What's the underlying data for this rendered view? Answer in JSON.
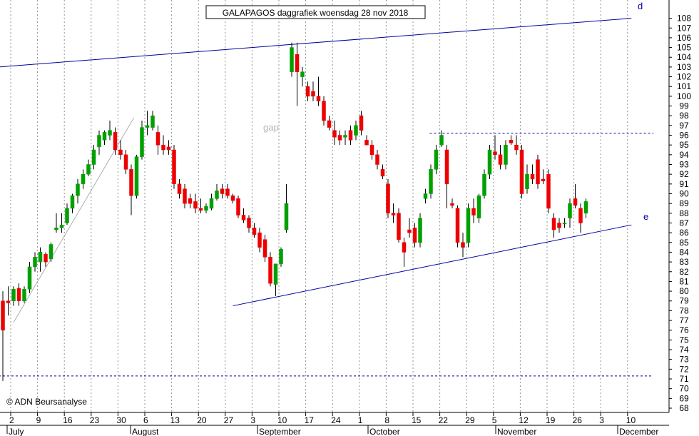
{
  "chart_data": {
    "type": "candlestick",
    "title": "GALAPAGOS daggrafiek woensdag 28 nov 2018",
    "copyright": "© ADN Beursanalyse",
    "annotations": {
      "gap": "gap",
      "d": "d",
      "e": "e"
    },
    "ylim": [
      68,
      108
    ],
    "yticks": [
      68,
      69,
      70,
      71,
      72,
      73,
      74,
      75,
      76,
      77,
      78,
      79,
      80,
      81,
      82,
      83,
      84,
      85,
      86,
      87,
      88,
      89,
      90,
      91,
      92,
      93,
      94,
      95,
      96,
      97,
      98,
      99,
      100,
      101,
      102,
      103,
      104,
      105,
      106,
      107,
      108
    ],
    "x_day_ticks": [
      "2",
      "9",
      "16",
      "23",
      "30",
      "6",
      "13",
      "20",
      "27",
      "3",
      "10",
      "17",
      "24",
      "1",
      "8",
      "15",
      "22",
      "29",
      "5",
      "12",
      "19",
      "26",
      "3",
      "10"
    ],
    "months": [
      "July",
      "August",
      "September",
      "October",
      "November",
      "December"
    ],
    "grid": true,
    "colors": {
      "up": "#00a000",
      "down": "#ee0000",
      "trendline": "#0000a0",
      "grid": "#909090"
    },
    "candles": [
      {
        "o": 79.0,
        "h": 80.0,
        "l": 70.8,
        "c": 76.0
      },
      {
        "o": 79.0,
        "h": 80.5,
        "l": 77.5,
        "c": 78.8
      },
      {
        "o": 79.0,
        "h": 80.5,
        "l": 78.5,
        "c": 80.2
      },
      {
        "o": 80.3,
        "h": 80.8,
        "l": 78.5,
        "c": 79.0
      },
      {
        "o": 79.0,
        "h": 80.5,
        "l": 78.8,
        "c": 80.2
      },
      {
        "o": 80.2,
        "h": 83.0,
        "l": 79.8,
        "c": 82.5
      },
      {
        "o": 82.5,
        "h": 84.0,
        "l": 82.0,
        "c": 83.5
      },
      {
        "o": 83.0,
        "h": 84.5,
        "l": 82.0,
        "c": 84.0
      },
      {
        "o": 83.8,
        "h": 84.0,
        "l": 82.5,
        "c": 83.0
      },
      {
        "o": 83.3,
        "h": 85.0,
        "l": 83.0,
        "c": 84.8
      },
      {
        "o": 86.3,
        "h": 88.0,
        "l": 86.0,
        "c": 86.5
      },
      {
        "o": 86.5,
        "h": 88.0,
        "l": 86.0,
        "c": 86.8
      },
      {
        "o": 87.0,
        "h": 89.0,
        "l": 86.8,
        "c": 88.5
      },
      {
        "o": 88.5,
        "h": 90.0,
        "l": 88.0,
        "c": 89.8
      },
      {
        "o": 89.8,
        "h": 91.5,
        "l": 89.0,
        "c": 91.0
      },
      {
        "o": 91.0,
        "h": 92.5,
        "l": 90.5,
        "c": 92.0
      },
      {
        "o": 92.0,
        "h": 93.5,
        "l": 91.8,
        "c": 93.0
      },
      {
        "o": 93.0,
        "h": 95.0,
        "l": 92.5,
        "c": 94.5
      },
      {
        "o": 94.8,
        "h": 96.5,
        "l": 94.0,
        "c": 96.0
      },
      {
        "o": 95.5,
        "h": 96.5,
        "l": 95.0,
        "c": 96.3
      },
      {
        "o": 96.0,
        "h": 97.5,
        "l": 95.5,
        "c": 96.5
      },
      {
        "o": 96.3,
        "h": 96.8,
        "l": 94.0,
        "c": 94.5
      },
      {
        "o": 94.5,
        "h": 95.5,
        "l": 93.5,
        "c": 94.0
      },
      {
        "o": 94.0,
        "h": 94.5,
        "l": 92.0,
        "c": 92.5
      },
      {
        "o": 92.5,
        "h": 93.0,
        "l": 87.8,
        "c": 89.8
      },
      {
        "o": 89.8,
        "h": 94.0,
        "l": 89.5,
        "c": 93.8
      },
      {
        "o": 93.8,
        "h": 97.5,
        "l": 93.5,
        "c": 96.8
      },
      {
        "o": 96.8,
        "h": 98.5,
        "l": 96.0,
        "c": 97.0
      },
      {
        "o": 96.8,
        "h": 98.5,
        "l": 96.5,
        "c": 98.0
      },
      {
        "o": 96.3,
        "h": 97.0,
        "l": 94.0,
        "c": 95.0
      },
      {
        "o": 95.0,
        "h": 96.0,
        "l": 94.0,
        "c": 94.5
      },
      {
        "o": 94.8,
        "h": 95.5,
        "l": 94.0,
        "c": 94.5
      },
      {
        "o": 94.5,
        "h": 95.0,
        "l": 90.5,
        "c": 91.0
      },
      {
        "o": 91.0,
        "h": 91.5,
        "l": 89.5,
        "c": 90.0
      },
      {
        "o": 90.5,
        "h": 91.0,
        "l": 88.5,
        "c": 89.0
      },
      {
        "o": 89.5,
        "h": 90.0,
        "l": 88.5,
        "c": 89.0
      },
      {
        "o": 89.2,
        "h": 90.0,
        "l": 88.0,
        "c": 88.5
      },
      {
        "o": 88.5,
        "h": 89.5,
        "l": 88.0,
        "c": 88.3
      },
      {
        "o": 88.3,
        "h": 89.0,
        "l": 88.0,
        "c": 88.7
      },
      {
        "o": 88.5,
        "h": 90.0,
        "l": 88.3,
        "c": 89.5
      },
      {
        "o": 89.5,
        "h": 91.0,
        "l": 89.3,
        "c": 90.3
      },
      {
        "o": 90.5,
        "h": 91.0,
        "l": 89.5,
        "c": 90.0
      },
      {
        "o": 90.5,
        "h": 91.0,
        "l": 89.5,
        "c": 89.8
      },
      {
        "o": 89.8,
        "h": 90.0,
        "l": 89.0,
        "c": 89.3
      },
      {
        "o": 89.5,
        "h": 89.8,
        "l": 87.5,
        "c": 87.8
      },
      {
        "o": 87.8,
        "h": 88.5,
        "l": 87.0,
        "c": 87.3
      },
      {
        "o": 87.5,
        "h": 87.8,
        "l": 86.0,
        "c": 86.5
      },
      {
        "o": 86.5,
        "h": 87.0,
        "l": 85.5,
        "c": 85.8
      },
      {
        "o": 86.0,
        "h": 86.5,
        "l": 84.0,
        "c": 84.5
      },
      {
        "o": 85.3,
        "h": 85.8,
        "l": 83.0,
        "c": 83.5
      },
      {
        "o": 83.5,
        "h": 84.0,
        "l": 80.5,
        "c": 80.8
      },
      {
        "o": 80.7,
        "h": 82.8,
        "l": 79.5,
        "c": 82.8
      },
      {
        "o": 82.8,
        "h": 84.5,
        "l": 82.5,
        "c": 84.3
      },
      {
        "o": 86.3,
        "h": 91.0,
        "l": 86.0,
        "c": 89.0
      },
      {
        "o": 102.5,
        "h": 105.5,
        "l": 102.0,
        "c": 105.0
      },
      {
        "o": 104.3,
        "h": 105.5,
        "l": 99.0,
        "c": 102.5
      },
      {
        "o": 102.0,
        "h": 103.0,
        "l": 101.0,
        "c": 102.5
      },
      {
        "o": 101.0,
        "h": 101.5,
        "l": 99.5,
        "c": 100.0
      },
      {
        "o": 100.5,
        "h": 101.5,
        "l": 99.5,
        "c": 100.0
      },
      {
        "o": 100.0,
        "h": 102.0,
        "l": 99.0,
        "c": 99.5
      },
      {
        "o": 99.5,
        "h": 100.0,
        "l": 97.0,
        "c": 97.5
      },
      {
        "o": 97.5,
        "h": 98.0,
        "l": 96.5,
        "c": 96.8
      },
      {
        "o": 96.5,
        "h": 97.5,
        "l": 95.0,
        "c": 95.8
      },
      {
        "o": 96.0,
        "h": 96.5,
        "l": 95.0,
        "c": 95.5
      },
      {
        "o": 95.8,
        "h": 96.5,
        "l": 95.0,
        "c": 96.0
      },
      {
        "o": 96.5,
        "h": 97.0,
        "l": 95.0,
        "c": 95.5
      },
      {
        "o": 96.0,
        "h": 97.5,
        "l": 95.5,
        "c": 97.0
      },
      {
        "o": 98.0,
        "h": 98.5,
        "l": 96.0,
        "c": 96.5
      },
      {
        "o": 95.5,
        "h": 96.0,
        "l": 95.0,
        "c": 95.0
      },
      {
        "o": 95.0,
        "h": 95.5,
        "l": 93.5,
        "c": 94.0
      },
      {
        "o": 94.0,
        "h": 94.5,
        "l": 92.5,
        "c": 93.0
      },
      {
        "o": 92.5,
        "h": 93.0,
        "l": 91.5,
        "c": 91.8
      },
      {
        "o": 91.0,
        "h": 91.5,
        "l": 87.5,
        "c": 88.0
      },
      {
        "o": 88.0,
        "h": 89.0,
        "l": 87.0,
        "c": 87.8
      },
      {
        "o": 88.0,
        "h": 88.5,
        "l": 85.0,
        "c": 85.3
      },
      {
        "o": 85.0,
        "h": 85.5,
        "l": 82.5,
        "c": 84.0
      },
      {
        "o": 86.3,
        "h": 87.5,
        "l": 85.5,
        "c": 86.0
      },
      {
        "o": 86.5,
        "h": 87.0,
        "l": 84.5,
        "c": 85.0
      },
      {
        "o": 85.0,
        "h": 88.0,
        "l": 84.5,
        "c": 87.5
      },
      {
        "o": 89.5,
        "h": 90.5,
        "l": 89.0,
        "c": 90.0
      },
      {
        "o": 90.0,
        "h": 93.0,
        "l": 89.5,
        "c": 92.5
      },
      {
        "o": 92.5,
        "h": 95.0,
        "l": 92.0,
        "c": 94.5
      },
      {
        "o": 95.0,
        "h": 96.5,
        "l": 94.8,
        "c": 96.0
      },
      {
        "o": 94.5,
        "h": 95.0,
        "l": 88.5,
        "c": 91.0
      },
      {
        "o": 89.0,
        "h": 89.5,
        "l": 88.5,
        "c": 88.8
      },
      {
        "o": 88.5,
        "h": 88.8,
        "l": 84.5,
        "c": 85.0
      },
      {
        "o": 85.0,
        "h": 86.0,
        "l": 83.5,
        "c": 84.5
      },
      {
        "o": 85.0,
        "h": 89.0,
        "l": 84.5,
        "c": 88.5
      },
      {
        "o": 88.5,
        "h": 89.5,
        "l": 87.0,
        "c": 87.8
      },
      {
        "o": 87.5,
        "h": 90.0,
        "l": 87.0,
        "c": 89.8
      },
      {
        "o": 89.8,
        "h": 92.5,
        "l": 89.5,
        "c": 92.0
      },
      {
        "o": 92.0,
        "h": 95.0,
        "l": 91.5,
        "c": 94.5
      },
      {
        "o": 94.3,
        "h": 96.0,
        "l": 93.5,
        "c": 94.0
      },
      {
        "o": 94.0,
        "h": 95.0,
        "l": 92.5,
        "c": 93.0
      },
      {
        "o": 93.0,
        "h": 95.5,
        "l": 92.5,
        "c": 95.0
      },
      {
        "o": 95.5,
        "h": 96.0,
        "l": 95.0,
        "c": 95.2
      },
      {
        "o": 95.0,
        "h": 96.0,
        "l": 94.0,
        "c": 94.5
      },
      {
        "o": 94.5,
        "h": 95.0,
        "l": 89.5,
        "c": 90.0
      },
      {
        "o": 90.5,
        "h": 93.0,
        "l": 90.0,
        "c": 92.0
      },
      {
        "o": 92.0,
        "h": 93.0,
        "l": 91.0,
        "c": 91.5
      },
      {
        "o": 93.5,
        "h": 94.0,
        "l": 90.5,
        "c": 91.0
      },
      {
        "o": 91.5,
        "h": 92.5,
        "l": 91.0,
        "c": 91.3
      },
      {
        "o": 92.0,
        "h": 92.5,
        "l": 88.0,
        "c": 88.5
      },
      {
        "o": 87.5,
        "h": 88.0,
        "l": 85.5,
        "c": 86.3
      },
      {
        "o": 87.0,
        "h": 87.5,
        "l": 86.0,
        "c": 86.5
      },
      {
        "o": 87.0,
        "h": 87.5,
        "l": 86.5,
        "c": 87.0
      },
      {
        "o": 87.5,
        "h": 89.5,
        "l": 86.5,
        "c": 89.0
      },
      {
        "o": 89.5,
        "h": 91.0,
        "l": 88.5,
        "c": 88.8
      },
      {
        "o": 88.5,
        "h": 89.0,
        "l": 86.0,
        "c": 87.0
      },
      {
        "o": 88.0,
        "h": 89.5,
        "l": 87.5,
        "c": 89.2
      }
    ],
    "trendlines": [
      {
        "name": "d",
        "from": {
          "i": -0.8,
          "v": 103.0
        },
        "to": {
          "i": 117.5,
          "v": 108.0
        }
      },
      {
        "name": "e",
        "from": {
          "i": 43.0,
          "v": 78.5
        },
        "to": {
          "i": 117.5,
          "v": 86.8
        }
      },
      {
        "name": "support-thin",
        "from": {
          "i": 2.0,
          "v": 76.8
        },
        "to": {
          "i": 24.5,
          "v": 97.8
        }
      }
    ],
    "dotted_levels": [
      {
        "v": 71.3,
        "from": -0.8,
        "to": 121.6
      },
      {
        "v": 96.2,
        "from": 79.8,
        "to": 121.6
      }
    ]
  }
}
